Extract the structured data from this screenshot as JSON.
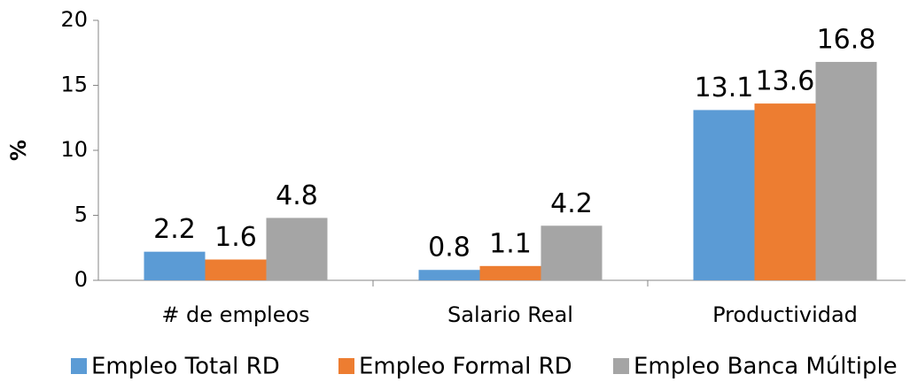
{
  "chart_data": {
    "type": "bar",
    "ylabel": "%",
    "categories": [
      "# de empleos",
      "Salario Real",
      "Productividad"
    ],
    "series": [
      {
        "name": "Empleo Total RD",
        "color": "#5b9bd5",
        "values": [
          2.2,
          0.8,
          13.1
        ]
      },
      {
        "name": "Empleo Formal RD",
        "color": "#ed7d31",
        "values": [
          1.6,
          1.1,
          13.6
        ]
      },
      {
        "name": "Empleo Banca Múltiple",
        "color": "#a5a5a5",
        "values": [
          4.8,
          4.2,
          16.8
        ]
      }
    ],
    "ylim": [
      0,
      20
    ],
    "yticks": [
      0,
      5,
      10,
      15,
      20
    ],
    "grid": false,
    "legend": "bottom"
  }
}
